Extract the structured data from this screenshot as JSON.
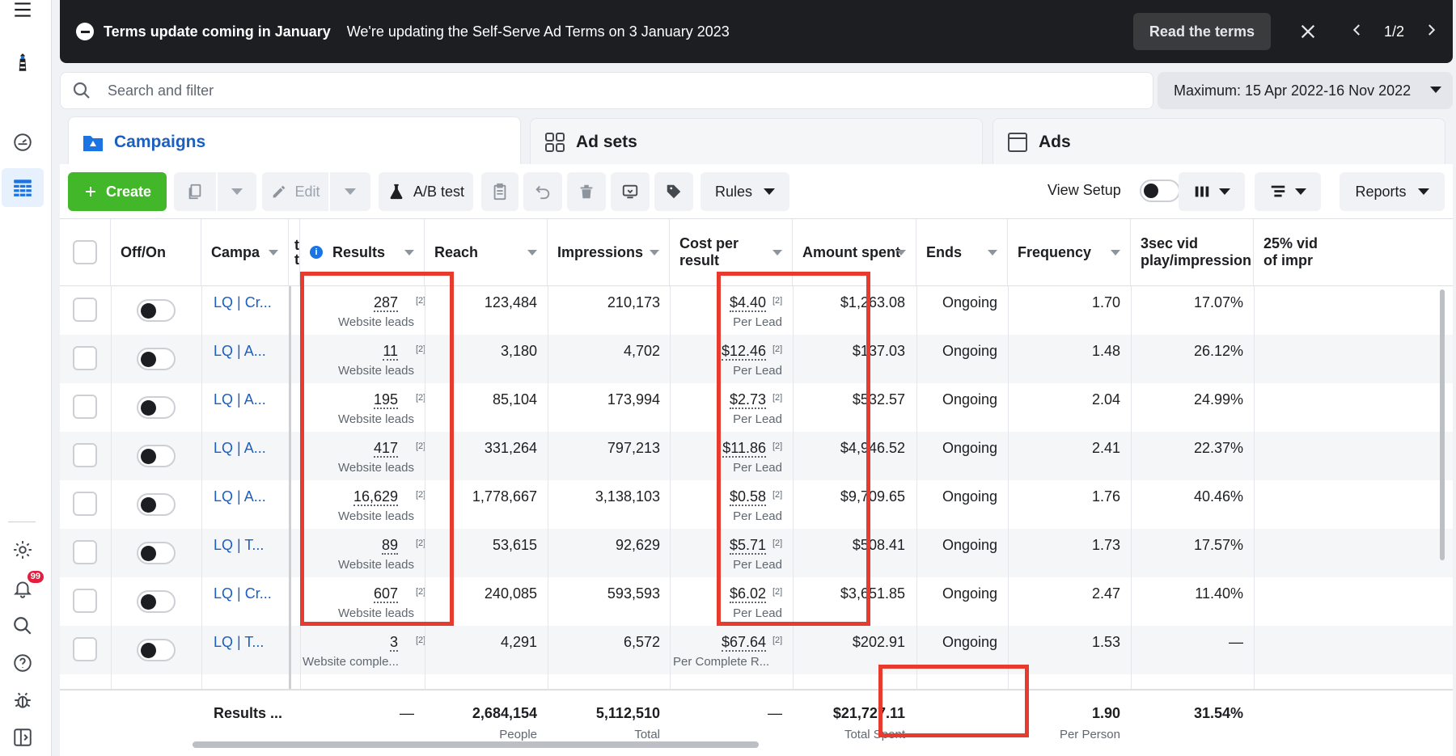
{
  "banner": {
    "title": "Terms update coming in January",
    "text": "We're updating the Self-Serve Ad Terms on 3 January 2023",
    "button": "Read the terms",
    "pager": "1/2"
  },
  "search": {
    "placeholder": "Search and filter"
  },
  "date_range": "Maximum: 15 Apr 2022-16 Nov 2022",
  "tabs": [
    {
      "label": "Campaigns",
      "icon": "campaign-flag-icon"
    },
    {
      "label": "Ad sets",
      "icon": "grid-icon"
    },
    {
      "label": "Ads",
      "icon": "ad-window-icon"
    }
  ],
  "toolbar": {
    "create": "Create",
    "edit": "Edit",
    "ab_test": "A/B test",
    "rules": "Rules",
    "view_setup": "View Setup",
    "reports": "Reports"
  },
  "rail": {
    "notification_count": "99"
  },
  "columns": {
    "offon": "Off/On",
    "campaign": "Campa",
    "t_fragment_1": "t",
    "t_fragment_2": "t",
    "results": "Results",
    "reach": "Reach",
    "impressions": "Impressions",
    "cost": "Cost per result",
    "amount": "Amount spent",
    "ends": "Ends",
    "frequency": "Frequency",
    "vid3_l1": "3sec vid",
    "vid3_l2": "play/impression",
    "vid25_l1": "25% vid",
    "vid25_l2": "of impr"
  },
  "footnote_marker": "[2]",
  "rows": [
    {
      "name": "LQ | Cr...",
      "results": "287",
      "results_sub": "Website leads",
      "reach": "123,484",
      "impressions": "210,173",
      "cost": "$4.40",
      "cost_sub": "Per Lead",
      "amount": "$1,263.08",
      "ends": "Ongoing",
      "frequency": "1.70",
      "vid3": "17.07%"
    },
    {
      "name": "LQ | A...",
      "results": "11",
      "results_sub": "Website leads",
      "reach": "3,180",
      "impressions": "4,702",
      "cost": "$12.46",
      "cost_sub": "Per Lead",
      "amount": "$137.03",
      "ends": "Ongoing",
      "frequency": "1.48",
      "vid3": "26.12%"
    },
    {
      "name": "LQ | A...",
      "results": "195",
      "results_sub": "Website leads",
      "reach": "85,104",
      "impressions": "173,994",
      "cost": "$2.73",
      "cost_sub": "Per Lead",
      "amount": "$532.57",
      "ends": "Ongoing",
      "frequency": "2.04",
      "vid3": "24.99%"
    },
    {
      "name": "LQ | A...",
      "results": "417",
      "results_sub": "Website leads",
      "reach": "331,264",
      "impressions": "797,213",
      "cost": "$11.86",
      "cost_sub": "Per Lead",
      "amount": "$4,946.52",
      "ends": "Ongoing",
      "frequency": "2.41",
      "vid3": "22.37%"
    },
    {
      "name": "LQ | A...",
      "results": "16,629",
      "results_sub": "Website leads",
      "reach": "1,778,667",
      "impressions": "3,138,103",
      "cost": "$0.58",
      "cost_sub": "Per Lead",
      "amount": "$9,709.65",
      "ends": "Ongoing",
      "frequency": "1.76",
      "vid3": "40.46%"
    },
    {
      "name": "LQ | T...",
      "results": "89",
      "results_sub": "Website leads",
      "reach": "53,615",
      "impressions": "92,629",
      "cost": "$5.71",
      "cost_sub": "Per Lead",
      "amount": "$508.41",
      "ends": "Ongoing",
      "frequency": "1.73",
      "vid3": "17.57%"
    },
    {
      "name": "LQ | Cr...",
      "results": "607",
      "results_sub": "Website leads",
      "reach": "240,085",
      "impressions": "593,593",
      "cost": "$6.02",
      "cost_sub": "Per Lead",
      "amount": "$3,651.85",
      "ends": "Ongoing",
      "frequency": "2.47",
      "vid3": "11.40%"
    },
    {
      "name": "LQ | T...",
      "results": "3",
      "results_sub": "Website comple...",
      "reach": "4,291",
      "impressions": "6,572",
      "cost": "$67.64",
      "cost_sub": "Per Complete R...",
      "amount": "$202.91",
      "ends": "Ongoing",
      "frequency": "1.53",
      "vid3": "—"
    }
  ],
  "totals": {
    "label": "Results ...",
    "results": "—",
    "reach": "2,684,154",
    "reach_sub": "People",
    "impressions": "5,112,510",
    "impressions_sub": "Total",
    "cost": "—",
    "amount": "$21,727.11",
    "amount_sub": "Total Spent",
    "frequency": "1.90",
    "frequency_sub": "Per Person",
    "vid3": "31.54%"
  },
  "colors": {
    "accent": "#1b74e4",
    "create": "#42b72a",
    "highlight": "#e63b2e",
    "banner": "#1c1e21"
  }
}
